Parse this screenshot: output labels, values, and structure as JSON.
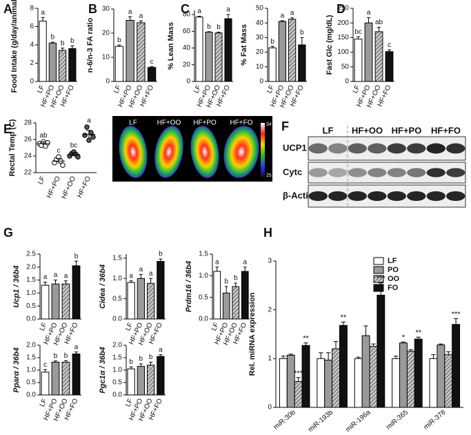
{
  "chart_data": [
    {
      "type": "bar",
      "panel": "A",
      "ylabel": "Food Intake (g/day/animal)",
      "categories": [
        "LF",
        "HF+PO",
        "HF+OO",
        "HF+FO"
      ],
      "values": [
        6.6,
        4.2,
        3.4,
        3.6
      ],
      "errors": [
        0.4,
        0.1,
        0.25,
        0.3
      ],
      "letters": [
        "a",
        "b",
        "b",
        "b"
      ],
      "colors": [
        "#ffffff",
        "#9a9a9a",
        "#c8c8c8",
        "#111111"
      ],
      "hatched": [
        false,
        false,
        true,
        false
      ],
      "ylim": [
        0,
        8
      ],
      "yticks": [
        0,
        2,
        4,
        6,
        8
      ]
    },
    {
      "type": "bar",
      "panel": "B",
      "ylabel": "n-6/n-3 FA ratio",
      "categories": [
        "LF",
        "HF+PO",
        "HF+OO",
        "HF+FO"
      ],
      "values": [
        14.5,
        25.3,
        24.3,
        5.8
      ],
      "errors": [
        0.6,
        1.5,
        0.8,
        0.3
      ],
      "letters": [
        "b",
        "a",
        "a",
        "c"
      ],
      "colors": [
        "#ffffff",
        "#9a9a9a",
        "#c8c8c8",
        "#111111"
      ],
      "hatched": [
        false,
        false,
        true,
        false
      ],
      "ylim": [
        0,
        30
      ],
      "yticks": [
        0,
        10,
        20,
        30
      ]
    },
    {
      "type": "bar",
      "panel": "C",
      "ylabel": "% Lean Mass",
      "categories": [
        "LF",
        "HF+PO",
        "HF+OO",
        "HF+FO"
      ],
      "values": [
        77,
        59,
        58,
        75
      ],
      "errors": [
        1,
        0.5,
        1,
        5
      ],
      "letters": [
        "a",
        "b",
        "b",
        "a"
      ],
      "colors": [
        "#ffffff",
        "#9a9a9a",
        "#c8c8c8",
        "#111111"
      ],
      "hatched": [
        false,
        false,
        true,
        false
      ],
      "ylim": [
        0,
        85
      ],
      "yticks": [
        0,
        20,
        40,
        60,
        80
      ]
    },
    {
      "type": "bar",
      "ylabel": "% Fat Mass",
      "categories": [
        "LF",
        "HF+PO",
        "HF+OO",
        "HF+FO"
      ],
      "values": [
        23,
        41,
        42.5,
        25
      ],
      "errors": [
        1,
        0.5,
        1,
        5
      ],
      "letters": [
        "b",
        "a",
        "a",
        "b"
      ],
      "colors": [
        "#ffffff",
        "#9a9a9a",
        "#c8c8c8",
        "#111111"
      ],
      "hatched": [
        false,
        false,
        true,
        false
      ],
      "ylim": [
        0,
        50
      ],
      "yticks": [
        0,
        10,
        20,
        30,
        40,
        50
      ]
    },
    {
      "type": "bar",
      "panel": "D",
      "ylabel": "Fast Glc (mg/dL)",
      "categories": [
        "LF",
        "HF+PO",
        "HF+OO",
        "HF+FO"
      ],
      "values": [
        145,
        200,
        170,
        102
      ],
      "errors": [
        8,
        18,
        15,
        6
      ],
      "letters": [
        "bc",
        "a",
        "ab",
        "c"
      ],
      "colors": [
        "#ffffff",
        "#9a9a9a",
        "#c8c8c8",
        "#111111"
      ],
      "hatched": [
        false,
        false,
        true,
        false
      ],
      "ylim": [
        0,
        250
      ],
      "yticks": [
        0,
        50,
        100,
        150,
        200,
        250
      ]
    },
    {
      "type": "dot",
      "panel": "E",
      "ylabel": "Rectal Temp (C)",
      "categories": [
        "LF",
        "HF+PO",
        "HF+OO",
        "HF+FO"
      ],
      "values": [
        [
          25.5,
          25.3,
          25.7,
          25.2,
          25.6
        ],
        [
          23.2,
          23.6,
          23.9,
          23.4,
          22.9
        ],
        [
          24.0,
          24.3,
          24.5,
          24.2,
          23.9
        ],
        [
          26.5,
          27.5,
          25.9,
          26.8,
          26.3
        ]
      ],
      "means": [
        25.5,
        23.4,
        24.2,
        26.6
      ],
      "errors": [
        0.2,
        0.3,
        0.2,
        0.5
      ],
      "letters": [
        "ab",
        "c",
        "bc",
        "a"
      ],
      "colors": [
        "#ffffff",
        "#ffffff",
        "#555555",
        "#555555"
      ],
      "ylim": [
        22,
        28
      ],
      "yticks": [
        22,
        24,
        26,
        28
      ],
      "thermal_labels": [
        "LF",
        "HF+OO",
        "HF+PO",
        "HF+FO"
      ],
      "thermal_scale": [
        34,
        25
      ]
    },
    {
      "type": "blot",
      "panel": "F",
      "lanes": [
        "LF",
        "HF+OO",
        "HF+PO",
        "HF+FO"
      ],
      "rows": [
        "UCP1",
        "Cytc",
        "β-Actin"
      ]
    },
    {
      "type": "bar",
      "panel": "G",
      "ylabel": "Ucp1 / 36b4",
      "categories": [
        "LF",
        "HF+PO",
        "HF+OO",
        "HF+FO"
      ],
      "values": [
        1.3,
        1.35,
        1.35,
        2.05
      ],
      "errors": [
        0.12,
        0.15,
        0.12,
        0.18
      ],
      "letters": [
        "a",
        "a",
        "a",
        "b"
      ],
      "colors": [
        "#ffffff",
        "#9a9a9a",
        "#c8c8c8",
        "#111111"
      ],
      "hatched": [
        false,
        false,
        true,
        false
      ],
      "ylim": [
        0,
        2.5
      ],
      "yticks": [
        {
          "value": 0,
          "label": "0.0"
        },
        0.5,
        {
          "value": 1,
          "label": "1.0"
        },
        1.5,
        {
          "value": 2,
          "label": "2.0"
        },
        2.5
      ]
    },
    {
      "type": "bar",
      "ylabel": "Cidea / 36b4",
      "categories": [
        "LF",
        "HF+PO",
        "HF+OO",
        "HF+FO"
      ],
      "values": [
        0.9,
        1.0,
        0.88,
        1.42
      ],
      "errors": [
        0.04,
        0.1,
        0.12,
        0.06
      ],
      "letters": [
        "a",
        "a",
        "a",
        "b"
      ],
      "colors": [
        "#ffffff",
        "#9a9a9a",
        "#c8c8c8",
        "#111111"
      ],
      "hatched": [
        false,
        false,
        true,
        false
      ],
      "ylim": [
        0,
        1.6
      ],
      "yticks": [
        {
          "value": 0,
          "label": "0.0"
        },
        0.5,
        {
          "value": 1,
          "label": "1.0"
        },
        1.5
      ]
    },
    {
      "type": "bar",
      "ylabel": "Prdm16 / 36b4",
      "categories": [
        "LF",
        "HF+PO",
        "HF+OO",
        "HF+FO"
      ],
      "values": [
        1.1,
        0.6,
        0.75,
        1.1
      ],
      "errors": [
        0.1,
        0.15,
        0.08,
        0.1
      ],
      "letters": [
        "a",
        "b",
        "b",
        "a"
      ],
      "colors": [
        "#ffffff",
        "#9a9a9a",
        "#c8c8c8",
        "#111111"
      ],
      "hatched": [
        false,
        false,
        true,
        false
      ],
      "ylim": [
        0,
        1.5
      ],
      "yticks": [
        {
          "value": 0,
          "label": "0.0"
        },
        0.5,
        {
          "value": 1,
          "label": "1.0"
        },
        1.5
      ]
    },
    {
      "type": "bar",
      "ylabel": "Pparα / 36b4",
      "categories": [
        "LF",
        "HF+PO",
        "HF+OO",
        "HF+FO"
      ],
      "values": [
        0.92,
        1.32,
        1.32,
        1.65
      ],
      "errors": [
        0.1,
        0.05,
        0.06,
        0.08
      ],
      "letters": [
        "c",
        "b",
        "b",
        "a"
      ],
      "colors": [
        "#ffffff",
        "#9a9a9a",
        "#c8c8c8",
        "#111111"
      ],
      "hatched": [
        false,
        false,
        true,
        false
      ],
      "ylim": [
        0,
        2
      ],
      "yticks": [
        {
          "value": 0,
          "label": "0.0"
        },
        0.5,
        {
          "value": 1,
          "label": "1.0"
        },
        1.5,
        {
          "value": 2,
          "label": "2.0"
        }
      ]
    },
    {
      "type": "bar",
      "ylabel": "Pgc1α / 36b4",
      "categories": [
        "LF",
        "HF+PO",
        "HF+OO",
        "HF+FO"
      ],
      "values": [
        1.05,
        1.15,
        1.2,
        1.55
      ],
      "errors": [
        0.08,
        0.1,
        0.12,
        0.07
      ],
      "letters": [
        "b",
        "b",
        "b",
        "a"
      ],
      "colors": [
        "#ffffff",
        "#9a9a9a",
        "#c8c8c8",
        "#111111"
      ],
      "hatched": [
        false,
        false,
        true,
        false
      ],
      "ylim": [
        0,
        2
      ],
      "yticks": [
        {
          "value": 0,
          "label": "0.0"
        },
        0.5,
        {
          "value": 1,
          "label": "1.0"
        },
        1.5,
        {
          "value": 2,
          "label": "2.0"
        }
      ]
    },
    {
      "type": "grouped_bar",
      "panel": "H",
      "ylabel": "Rel. miRNA expression",
      "categories": [
        "miR-30b",
        "miR-193b",
        "miR-196a",
        "miR-365",
        "miR-378"
      ],
      "series": [
        {
          "name": "LF",
          "color": "#ffffff",
          "hatched": false,
          "values": [
            1.0,
            1.0,
            1.0,
            1.0,
            1.0
          ],
          "errors": [
            0.05,
            0.12,
            0.03,
            0.05,
            0.08
          ],
          "annotations": [
            null,
            null,
            null,
            null,
            null
          ]
        },
        {
          "name": "PO",
          "color": "#9a9a9a",
          "hatched": false,
          "values": [
            1.07,
            0.97,
            1.47,
            1.32,
            1.28
          ],
          "errors": [
            0.02,
            0.15,
            0.2,
            0.02,
            0.02
          ],
          "annotations": [
            null,
            null,
            null,
            "*",
            null
          ]
        },
        {
          "name": "OO",
          "color": "#c8c8c8",
          "hatched": true,
          "values": [
            0.53,
            1.2,
            1.25,
            1.15,
            1.08
          ],
          "errors": [
            0.08,
            0.15,
            0.05,
            0.03,
            0.06
          ],
          "annotations": [
            "***",
            null,
            null,
            null,
            null
          ]
        },
        {
          "name": "FO",
          "color": "#111111",
          "hatched": false,
          "values": [
            1.27,
            1.68,
            2.3,
            1.4,
            1.7
          ],
          "errors": [
            0.05,
            0.07,
            0.25,
            0.04,
            0.12
          ],
          "annotations": [
            "**",
            "**",
            "***",
            "**",
            "***"
          ]
        }
      ],
      "ylim": [
        0,
        3
      ],
      "yticks": [
        0,
        1,
        2,
        3
      ],
      "legend": "upper right"
    }
  ]
}
